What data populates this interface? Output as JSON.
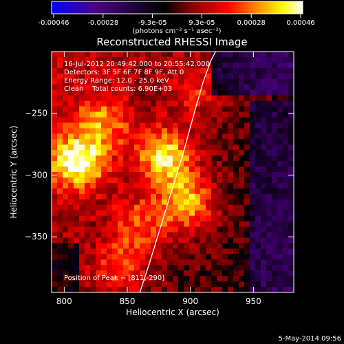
{
  "chart_data": {
    "type": "heatmap",
    "title": "Reconstructed RHESSI Image",
    "xlabel": "Heliocentric X (arcsec)",
    "ylabel": "Heliocentric Y (arcsec)",
    "xlim": [
      790,
      982
    ],
    "ylim": [
      -395,
      -200
    ],
    "x_ticks": [
      800,
      850,
      900,
      950
    ],
    "y_ticks": [
      -250,
      -300,
      -350
    ],
    "annotations": [
      "16-Jul-2012 20:49:42.000 to 20:55:42.000",
      "Detectors: 3F 5F 6F 7F 8F 9F, Att 0",
      "Energy Range: 12.0 - 25.0 keV",
      "Clean    Total counts: 6.90E+03"
    ],
    "peak_label": "Position of Peak = [811,-290]",
    "colorbar": {
      "ticks": [
        "-0.00046",
        "-0.00028",
        "-9.3e-05",
        "9.3e-05",
        "0.00028",
        "0.00046"
      ],
      "range": [
        -0.00046,
        0.00046
      ],
      "unit_label": "(photons cm⁻² s⁻¹ asec⁻²)",
      "colormap": [
        "#0000ff",
        "#4b0082",
        "#000000",
        "#800000",
        "#ff0000",
        "#ff8c00",
        "#ffff00",
        "#ffffff"
      ]
    },
    "limb_curve": {
      "x": [
        860,
        868,
        877,
        886,
        895,
        903,
        910,
        916,
        920
      ],
      "y": [
        -395,
        -370,
        -340,
        -310,
        -280,
        -250,
        -225,
        -208,
        -200
      ]
    },
    "sources": [
      {
        "x": 811,
        "y": -290,
        "strength": 1.0
      },
      {
        "x": 880,
        "y": -285,
        "strength": 0.9
      },
      {
        "x": 897,
        "y": -322,
        "strength": 0.8
      },
      {
        "x": 830,
        "y": -258,
        "strength": 0.55
      },
      {
        "x": 860,
        "y": -340,
        "strength": 0.5
      },
      {
        "x": 845,
        "y": -375,
        "strength": 0.45
      },
      {
        "x": 905,
        "y": -230,
        "strength": 0.35
      }
    ]
  },
  "footer": {
    "timestamp": "5-May-2014 09:56"
  }
}
